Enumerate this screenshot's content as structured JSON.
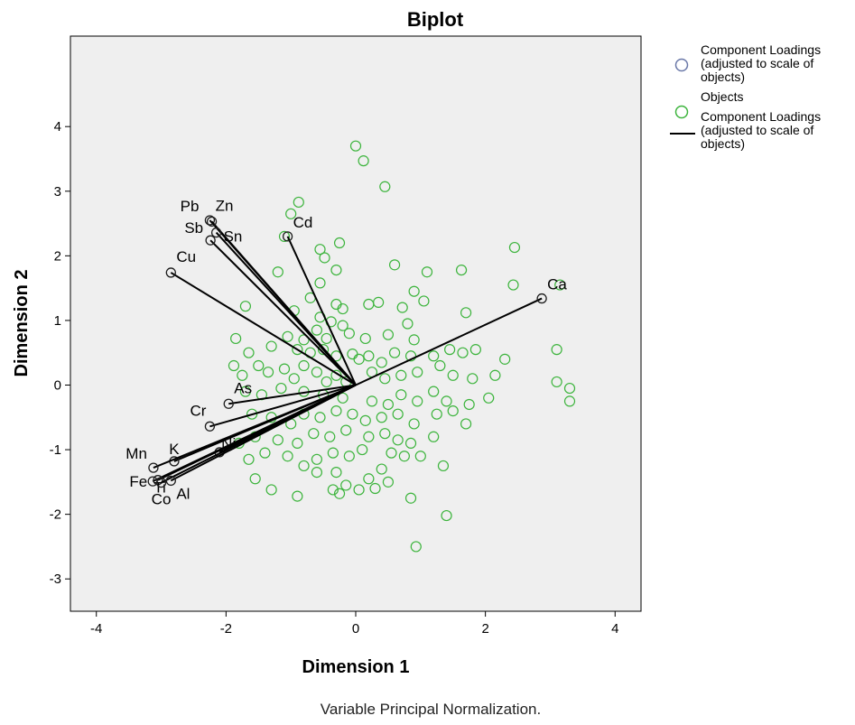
{
  "chart_data": {
    "type": "scatter",
    "title": "Biplot",
    "xlabel": "Dimension 1",
    "ylabel": "Dimension 2",
    "xlim": [
      -4.4,
      4.4
    ],
    "ylim": [
      -3.5,
      5.4
    ],
    "xticks": [
      -4,
      -2,
      0,
      2,
      4
    ],
    "yticks": [
      -3,
      -2,
      -1,
      0,
      1,
      2,
      3,
      4
    ],
    "grid": false,
    "legend_position": "right",
    "footnote": "Variable Principal Normalization.",
    "colors": {
      "plot_background": "#efefef",
      "objects": "#3cb43c",
      "loading_circle": "#1e1e1e",
      "loading_line": "#000000",
      "legend_loading_circle": "#6a78a8"
    },
    "legend": [
      {
        "marker": "circle",
        "color": "#6a78a8",
        "lines": [
          "Component Loadings",
          "(adjusted to scale of",
          "objects)"
        ]
      },
      {
        "marker": "circle",
        "color": "#3cb43c",
        "lines": [
          "Objects"
        ]
      },
      {
        "marker": "line",
        "color": "#000000",
        "lines": [
          "Component Loadings",
          "(adjusted to scale of",
          "objects)"
        ]
      }
    ],
    "loadings": [
      {
        "name": "Pb",
        "x": -2.25,
        "y": 2.55
      },
      {
        "name": "Zn",
        "x": -2.22,
        "y": 2.53
      },
      {
        "name": "Sb",
        "x": -2.24,
        "y": 2.24
      },
      {
        "name": "Sn",
        "x": -2.15,
        "y": 2.36
      },
      {
        "name": "Cd",
        "x": -1.05,
        "y": 2.3
      },
      {
        "name": "Cu",
        "x": -2.85,
        "y": 1.74
      },
      {
        "name": "Ca",
        "x": 2.87,
        "y": 1.34
      },
      {
        "name": "As",
        "x": -1.96,
        "y": -0.29
      },
      {
        "name": "Cr",
        "x": -2.25,
        "y": -0.64
      },
      {
        "name": "Ni",
        "x": -2.1,
        "y": -1.04
      },
      {
        "name": "K",
        "x": -2.8,
        "y": -1.18
      },
      {
        "name": "Mn",
        "x": -3.12,
        "y": -1.28
      },
      {
        "name": "Fe",
        "x": -3.13,
        "y": -1.49
      },
      {
        "name": "Ti",
        "x": -3.05,
        "y": -1.47
      },
      {
        "name": "Co",
        "x": -3.0,
        "y": -1.51
      },
      {
        "name": "Al",
        "x": -2.85,
        "y": -1.48
      }
    ],
    "objects": [
      [
        0,
        3.7
      ],
      [
        0.12,
        3.47
      ],
      [
        0.45,
        3.07
      ],
      [
        -0.88,
        2.83
      ],
      [
        -1.0,
        2.65
      ],
      [
        -1.1,
        2.3
      ],
      [
        -0.55,
        2.1
      ],
      [
        -0.25,
        2.2
      ],
      [
        -0.48,
        1.97
      ],
      [
        -1.2,
        1.75
      ],
      [
        -0.3,
        1.78
      ],
      [
        0.6,
        1.86
      ],
      [
        1.1,
        1.75
      ],
      [
        1.63,
        1.78
      ],
      [
        2.45,
        2.13
      ],
      [
        2.43,
        1.55
      ],
      [
        3.15,
        1.55
      ],
      [
        -0.55,
        1.58
      ],
      [
        -0.7,
        1.35
      ],
      [
        -0.3,
        1.25
      ],
      [
        -0.2,
        1.18
      ],
      [
        0.2,
        1.25
      ],
      [
        0.35,
        1.28
      ],
      [
        0.9,
        1.45
      ],
      [
        0.72,
        1.2
      ],
      [
        1.05,
        1.3
      ],
      [
        1.7,
        1.12
      ],
      [
        -1.7,
        1.22
      ],
      [
        -0.95,
        1.15
      ],
      [
        -0.55,
        1.05
      ],
      [
        -0.38,
        0.98
      ],
      [
        -0.2,
        0.92
      ],
      [
        -0.6,
        0.85
      ],
      [
        -0.8,
        0.7
      ],
      [
        -0.45,
        0.72
      ],
      [
        -0.1,
        0.8
      ],
      [
        0.15,
        0.72
      ],
      [
        0.5,
        0.78
      ],
      [
        0.8,
        0.95
      ],
      [
        0.9,
        0.7
      ],
      [
        -1.85,
        0.72
      ],
      [
        -1.65,
        0.5
      ],
      [
        -1.3,
        0.6
      ],
      [
        -1.05,
        0.75
      ],
      [
        -0.9,
        0.55
      ],
      [
        -0.7,
        0.5
      ],
      [
        -0.5,
        0.55
      ],
      [
        -0.3,
        0.45
      ],
      [
        -0.05,
        0.48
      ],
      [
        0.05,
        0.4
      ],
      [
        0.2,
        0.45
      ],
      [
        0.4,
        0.35
      ],
      [
        0.6,
        0.5
      ],
      [
        0.85,
        0.45
      ],
      [
        1.2,
        0.45
      ],
      [
        1.45,
        0.55
      ],
      [
        1.65,
        0.5
      ],
      [
        1.85,
        0.55
      ],
      [
        2.3,
        0.4
      ],
      [
        3.1,
        0.55
      ],
      [
        -1.88,
        0.3
      ],
      [
        -1.75,
        0.15
      ],
      [
        -1.5,
        0.3
      ],
      [
        -1.35,
        0.2
      ],
      [
        -1.1,
        0.25
      ],
      [
        -0.95,
        0.1
      ],
      [
        -0.8,
        0.3
      ],
      [
        -0.6,
        0.2
      ],
      [
        -0.45,
        0.05
      ],
      [
        -0.3,
        0.15
      ],
      [
        -0.15,
        0.05
      ],
      [
        0.25,
        0.2
      ],
      [
        0.45,
        0.1
      ],
      [
        0.7,
        0.15
      ],
      [
        0.95,
        0.2
      ],
      [
        1.3,
        0.3
      ],
      [
        1.5,
        0.15
      ],
      [
        1.8,
        0.1
      ],
      [
        2.15,
        0.15
      ],
      [
        3.1,
        0.05
      ],
      [
        3.3,
        -0.05
      ],
      [
        3.3,
        -0.25
      ],
      [
        2.05,
        -0.2
      ],
      [
        1.75,
        -0.3
      ],
      [
        1.4,
        -0.25
      ],
      [
        1.2,
        -0.1
      ],
      [
        0.95,
        -0.25
      ],
      [
        0.7,
        -0.15
      ],
      [
        0.5,
        -0.3
      ],
      [
        0.25,
        -0.25
      ],
      [
        -0.2,
        -0.2
      ],
      [
        -0.5,
        -0.15
      ],
      [
        -0.8,
        -0.1
      ],
      [
        -1.15,
        -0.05
      ],
      [
        -1.45,
        -0.15
      ],
      [
        -1.7,
        -0.1
      ],
      [
        -1.6,
        -0.45
      ],
      [
        -1.3,
        -0.5
      ],
      [
        -1.0,
        -0.6
      ],
      [
        -0.8,
        -0.45
      ],
      [
        -0.55,
        -0.5
      ],
      [
        -0.3,
        -0.4
      ],
      [
        -0.05,
        -0.45
      ],
      [
        0.15,
        -0.55
      ],
      [
        0.4,
        -0.5
      ],
      [
        0.65,
        -0.45
      ],
      [
        0.9,
        -0.6
      ],
      [
        1.25,
        -0.45
      ],
      [
        1.5,
        -0.4
      ],
      [
        1.7,
        -0.6
      ],
      [
        -0.15,
        -0.7
      ],
      [
        -0.4,
        -0.8
      ],
      [
        -0.65,
        -0.75
      ],
      [
        -0.9,
        -0.9
      ],
      [
        -1.2,
        -0.85
      ],
      [
        -1.55,
        -0.8
      ],
      [
        -1.8,
        -0.9
      ],
      [
        0.2,
        -0.8
      ],
      [
        0.45,
        -0.75
      ],
      [
        0.65,
        -0.85
      ],
      [
        0.85,
        -0.9
      ],
      [
        1.2,
        -0.8
      ],
      [
        0.1,
        -1.0
      ],
      [
        -0.1,
        -1.1
      ],
      [
        -0.35,
        -1.05
      ],
      [
        -0.6,
        -1.15
      ],
      [
        -0.8,
        -1.25
      ],
      [
        -1.05,
        -1.1
      ],
      [
        -1.4,
        -1.05
      ],
      [
        -1.65,
        -1.15
      ],
      [
        -1.55,
        -1.45
      ],
      [
        -1.3,
        -1.62
      ],
      [
        -0.9,
        -1.72
      ],
      [
        -0.6,
        -1.35
      ],
      [
        -0.3,
        -1.35
      ],
      [
        -0.15,
        -1.55
      ],
      [
        0.2,
        -1.45
      ],
      [
        0.4,
        -1.3
      ],
      [
        0.55,
        -1.05
      ],
      [
        0.75,
        -1.1
      ],
      [
        1.0,
        -1.1
      ],
      [
        1.35,
        -1.25
      ],
      [
        0.5,
        -1.5
      ],
      [
        0.3,
        -1.6
      ],
      [
        0.05,
        -1.62
      ],
      [
        -0.25,
        -1.68
      ],
      [
        -0.35,
        -1.62
      ],
      [
        0.85,
        -1.75
      ],
      [
        1.4,
        -2.02
      ],
      [
        0.93,
        -2.5
      ]
    ]
  }
}
